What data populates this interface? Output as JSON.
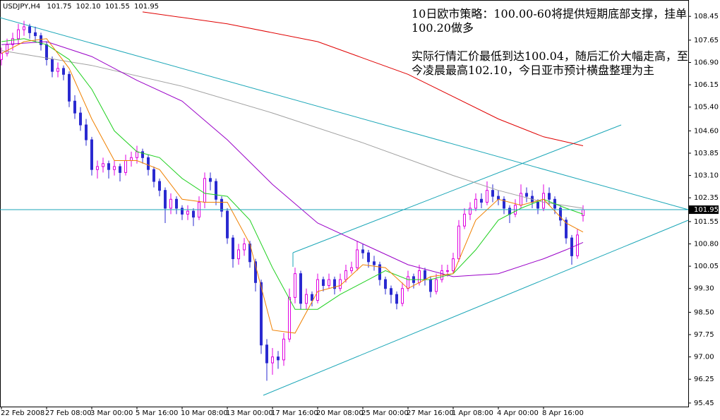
{
  "chart_data": {
    "type": "candlestick",
    "header": {
      "symbol": "USDJPY,H4",
      "values": [
        101.75,
        102.1,
        101.55,
        101.95
      ],
      "value_labels": [
        "101.75",
        "102.10",
        "101.55",
        "101.95"
      ]
    },
    "annotations": [
      "10日欧市策略：100.00-60将提供短期底部支撑，挂单100.20做多",
      "实际行情汇价最低到达100.04，随后汇价大幅走高，至今凌晨最高102.10，今日亚市预计横盘整理为主"
    ],
    "up_color": "#e000e0",
    "down_color": "#2a2ad0",
    "xlim": [
      -0.25,
      121.625
    ],
    "ylim": [
      95.33,
      109.0
    ],
    "xticks": [
      {
        "value": 0,
        "label": "22 Feb 2008"
      },
      {
        "value": 8,
        "label": "27 Feb 08:00"
      },
      {
        "value": 16,
        "label": "3 Mar 00:00"
      },
      {
        "value": 24,
        "label": "5 Mar 16:00"
      },
      {
        "value": 32,
        "label": "10 Mar 08:00"
      },
      {
        "value": 40,
        "label": "13 Mar 00:00"
      },
      {
        "value": 48,
        "label": "17 Mar 16:00"
      },
      {
        "value": 56,
        "label": "20 Mar 08:00"
      },
      {
        "value": 64,
        "label": "25 Mar 00:00"
      },
      {
        "value": 72,
        "label": "27 Mar 16:00"
      },
      {
        "value": 80,
        "label": "1 Apr 08:00"
      },
      {
        "value": 88,
        "label": "4 Apr 00:00"
      },
      {
        "value": 96,
        "label": "8 Apr 16:00"
      }
    ],
    "yticks": [
      108.45,
      107.65,
      {
        "value": 106.9,
        "label": "106.90"
      },
      106.15,
      {
        "value": 105.4,
        "label": "105.40"
      },
      {
        "value": 104.6,
        "label": "104.60"
      },
      103.85,
      {
        "value": 103.1,
        "label": "103.10"
      },
      102.35,
      101.55,
      {
        "value": 100.8,
        "label": "100.80"
      },
      100.05,
      {
        "value": 99.3,
        "label": "99.30"
      },
      {
        "value": 98.5,
        "label": "98.50"
      },
      97.75,
      {
        "value": 97.0,
        "label": "97.00"
      },
      96.25,
      95.45
    ],
    "candles": [
      [
        107.0,
        107.4,
        106.8,
        107.2
      ],
      [
        107.2,
        107.7,
        107.1,
        107.5
      ],
      [
        107.5,
        107.9,
        107.3,
        107.7
      ],
      [
        107.7,
        108.2,
        107.5,
        108.0
      ],
      [
        108.0,
        108.3,
        107.8,
        108.1
      ],
      [
        108.1,
        108.2,
        107.7,
        107.9
      ],
      [
        107.9,
        108.1,
        107.6,
        107.8
      ],
      [
        107.8,
        107.9,
        107.3,
        107.5
      ],
      [
        107.5,
        107.6,
        106.8,
        107.0
      ],
      [
        107.0,
        107.1,
        106.4,
        106.6
      ],
      [
        106.6,
        106.9,
        106.4,
        106.7
      ],
      [
        106.7,
        106.8,
        106.3,
        106.5
      ],
      [
        106.5,
        106.6,
        105.4,
        105.6
      ],
      [
        105.6,
        105.8,
        105.0,
        105.2
      ],
      [
        105.2,
        105.4,
        104.6,
        104.8
      ],
      [
        104.8,
        105.0,
        104.1,
        104.3
      ],
      [
        104.3,
        104.4,
        103.1,
        103.3
      ],
      [
        103.3,
        103.6,
        103.0,
        103.4
      ],
      [
        103.4,
        103.7,
        103.2,
        103.5
      ],
      [
        103.5,
        103.6,
        103.0,
        103.3
      ],
      [
        103.3,
        103.6,
        103.1,
        103.4
      ],
      [
        103.4,
        103.5,
        102.9,
        103.2
      ],
      [
        103.2,
        103.8,
        103.1,
        103.6
      ],
      [
        103.6,
        103.9,
        103.4,
        103.7
      ],
      [
        103.7,
        104.1,
        103.5,
        103.9
      ],
      [
        103.9,
        104.0,
        103.5,
        103.7
      ],
      [
        103.7,
        103.8,
        103.1,
        103.3
      ],
      [
        103.3,
        103.4,
        102.7,
        102.9
      ],
      [
        102.9,
        103.0,
        102.4,
        102.6
      ],
      [
        102.6,
        102.7,
        101.5,
        102.0
      ],
      [
        102.0,
        102.5,
        101.8,
        102.3
      ],
      [
        102.3,
        102.4,
        101.8,
        102.0
      ],
      [
        102.0,
        102.1,
        101.6,
        101.8
      ],
      [
        101.8,
        102.1,
        101.6,
        101.9
      ],
      [
        101.9,
        102.0,
        101.4,
        101.7
      ],
      [
        101.7,
        102.4,
        101.6,
        102.2
      ],
      [
        102.2,
        103.2,
        102.0,
        103.0
      ],
      [
        103.0,
        103.2,
        102.6,
        102.9
      ],
      [
        102.9,
        103.0,
        102.1,
        102.3
      ],
      [
        102.3,
        102.4,
        101.7,
        101.9
      ],
      [
        101.9,
        102.0,
        100.8,
        101.0
      ],
      [
        101.0,
        101.1,
        100.0,
        100.3
      ],
      [
        100.3,
        100.8,
        100.1,
        100.6
      ],
      [
        100.6,
        101.0,
        100.4,
        100.8
      ],
      [
        100.8,
        100.9,
        100.0,
        100.2
      ],
      [
        100.2,
        100.3,
        99.2,
        99.5
      ],
      [
        99.5,
        99.6,
        97.1,
        97.4
      ],
      [
        97.4,
        97.6,
        96.2,
        96.8
      ],
      [
        96.8,
        97.3,
        96.4,
        97.0
      ],
      [
        97.0,
        97.2,
        96.6,
        96.9
      ],
      [
        96.9,
        97.8,
        96.7,
        97.6
      ],
      [
        97.6,
        99.3,
        97.5,
        99.0
      ],
      [
        99.0,
        100.0,
        98.8,
        99.8
      ],
      [
        99.8,
        99.9,
        98.6,
        98.8
      ],
      [
        98.8,
        99.3,
        98.6,
        99.1
      ],
      [
        99.1,
        99.2,
        98.7,
        98.9
      ],
      [
        98.9,
        99.8,
        98.8,
        99.6
      ],
      [
        99.6,
        99.7,
        99.2,
        99.4
      ],
      [
        99.4,
        99.8,
        99.3,
        99.6
      ],
      [
        99.6,
        99.7,
        99.1,
        99.3
      ],
      [
        99.3,
        99.8,
        99.2,
        99.6
      ],
      [
        99.6,
        100.1,
        99.5,
        99.9
      ],
      [
        99.9,
        100.2,
        99.8,
        100.0
      ],
      [
        100.0,
        100.9,
        99.9,
        100.6
      ],
      [
        100.6,
        100.8,
        100.3,
        100.5
      ],
      [
        100.5,
        100.6,
        100.0,
        100.2
      ],
      [
        100.2,
        100.4,
        99.9,
        100.1
      ],
      [
        100.1,
        100.2,
        99.4,
        99.6
      ],
      [
        99.6,
        99.7,
        99.1,
        99.3
      ],
      [
        99.3,
        99.4,
        98.8,
        99.1
      ],
      [
        99.1,
        99.2,
        98.6,
        98.8
      ],
      [
        98.8,
        99.5,
        98.7,
        99.3
      ],
      [
        99.3,
        99.9,
        99.2,
        99.7
      ],
      [
        99.7,
        99.8,
        99.3,
        99.5
      ],
      [
        99.5,
        100.1,
        99.4,
        99.9
      ],
      [
        99.9,
        100.0,
        99.4,
        99.6
      ],
      [
        99.6,
        99.7,
        99.0,
        99.2
      ],
      [
        99.2,
        99.8,
        99.1,
        99.6
      ],
      [
        99.6,
        100.1,
        99.5,
        99.9
      ],
      [
        99.9,
        100.1,
        99.7,
        99.9
      ],
      [
        99.9,
        100.5,
        99.8,
        100.3
      ],
      [
        100.3,
        101.6,
        100.2,
        101.4
      ],
      [
        101.4,
        102.0,
        101.3,
        101.8
      ],
      [
        101.8,
        102.2,
        101.6,
        102.0
      ],
      [
        102.0,
        102.5,
        101.9,
        102.3
      ],
      [
        102.3,
        102.5,
        102.0,
        102.2
      ],
      [
        102.2,
        102.9,
        102.1,
        102.6
      ],
      [
        102.6,
        102.8,
        102.2,
        102.4
      ],
      [
        102.4,
        102.6,
        102.1,
        102.3
      ],
      [
        102.3,
        102.4,
        101.8,
        102.0
      ],
      [
        102.0,
        102.1,
        101.5,
        101.8
      ],
      [
        101.8,
        102.3,
        101.7,
        102.1
      ],
      [
        102.1,
        102.8,
        102.0,
        102.5
      ],
      [
        102.5,
        102.7,
        102.2,
        102.4
      ],
      [
        102.4,
        102.6,
        102.0,
        102.2
      ],
      [
        102.2,
        102.3,
        101.8,
        102.0
      ],
      [
        102.0,
        102.8,
        101.9,
        102.5
      ],
      [
        102.5,
        102.7,
        102.1,
        102.3
      ],
      [
        102.3,
        102.4,
        101.8,
        102.0
      ],
      [
        102.0,
        102.1,
        101.4,
        101.6
      ],
      [
        101.6,
        101.7,
        100.8,
        101.0
      ],
      [
        101.0,
        101.1,
        100.1,
        100.4
      ],
      [
        100.4,
        101.3,
        100.3,
        101.1
      ],
      [
        101.75,
        102.1,
        101.55,
        101.95
      ]
    ],
    "lines": [
      {
        "color": "#e00000",
        "x": [
          25,
          40,
          56,
          72,
          88,
          96,
          103
        ],
        "values": [
          108.6,
          108.2,
          107.6,
          106.5,
          105.0,
          104.4,
          104.1
        ]
      },
      {
        "color": "#a0a0a0",
        "x": [
          0,
          16,
          32,
          48,
          64,
          80,
          88,
          96,
          103
        ],
        "values": [
          107.3,
          106.8,
          106.1,
          105.2,
          104.2,
          103.1,
          102.6,
          102.2,
          102.0
        ]
      },
      {
        "color": "#9a00c8",
        "x": [
          0,
          8,
          16,
          24,
          32,
          40,
          48,
          56,
          64,
          72,
          80,
          88,
          96,
          100,
          103
        ],
        "values": [
          107.5,
          107.6,
          107.1,
          106.3,
          105.6,
          104.3,
          102.8,
          101.5,
          100.8,
          100.1,
          99.7,
          99.8,
          100.3,
          100.6,
          100.85
        ]
      },
      {
        "color": "#20d020",
        "x": [
          0,
          4,
          8,
          12,
          16,
          20,
          24,
          28,
          32,
          36,
          40,
          44,
          48,
          52,
          56,
          60,
          64,
          68,
          72,
          76,
          80,
          84,
          88,
          92,
          96,
          100,
          103
        ],
        "values": [
          107.6,
          107.7,
          107.5,
          107.0,
          106.0,
          104.6,
          103.9,
          103.7,
          103.0,
          102.5,
          102.4,
          101.6,
          100.0,
          98.6,
          98.6,
          99.1,
          99.5,
          99.9,
          99.6,
          99.6,
          99.8,
          100.6,
          101.6,
          102.0,
          102.3,
          102.0,
          101.8
        ]
      },
      {
        "color": "#f08000",
        "x": [
          0,
          4,
          8,
          12,
          16,
          20,
          24,
          28,
          32,
          36,
          40,
          44,
          48,
          52,
          56,
          60,
          64,
          68,
          72,
          76,
          80,
          84,
          88,
          92,
          96,
          100,
          103
        ],
        "values": [
          107.2,
          107.6,
          107.7,
          106.7,
          105.0,
          103.6,
          103.6,
          103.3,
          102.3,
          102.2,
          102.2,
          100.8,
          97.9,
          97.8,
          99.2,
          99.4,
          100.1,
          100.0,
          99.3,
          99.7,
          99.8,
          101.6,
          102.3,
          102.1,
          102.3,
          101.5,
          101.2
        ]
      }
    ]
  }
}
